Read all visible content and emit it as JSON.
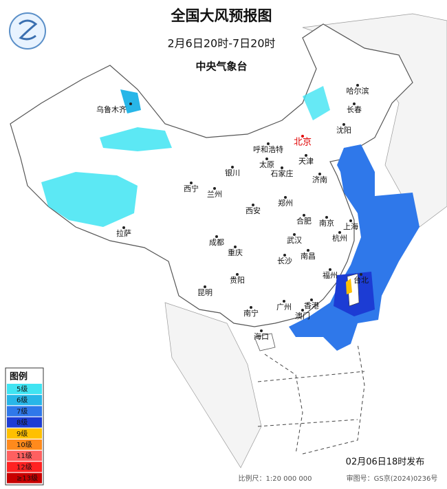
{
  "header": {
    "title": "全国大风预报图",
    "period": "2月6日20时-7日20时",
    "issuer": "中央气象台"
  },
  "cities": [
    {
      "name": "乌鲁木齐"
    },
    {
      "name": "哈尔滨"
    },
    {
      "name": "长春"
    },
    {
      "name": "沈阳"
    },
    {
      "name": "北京"
    },
    {
      "name": "呼和浩特"
    },
    {
      "name": "天津"
    },
    {
      "name": "银川"
    },
    {
      "name": "太原"
    },
    {
      "name": "石家庄"
    },
    {
      "name": "济南"
    },
    {
      "name": "西宁"
    },
    {
      "name": "兰州"
    },
    {
      "name": "郑州"
    },
    {
      "name": "西安"
    },
    {
      "name": "合肥"
    },
    {
      "name": "南京"
    },
    {
      "name": "上海"
    },
    {
      "name": "拉萨"
    },
    {
      "name": "成都"
    },
    {
      "name": "武汉"
    },
    {
      "name": "杭州"
    },
    {
      "name": "重庆"
    },
    {
      "name": "南昌"
    },
    {
      "name": "长沙"
    },
    {
      "name": "福州"
    },
    {
      "name": "台北"
    },
    {
      "name": "贵阳"
    },
    {
      "name": "昆明"
    },
    {
      "name": "广州"
    },
    {
      "name": "香港"
    },
    {
      "name": "澳门"
    },
    {
      "name": "南宁"
    },
    {
      "name": "海口"
    }
  ],
  "legend": {
    "title": "图例",
    "items": [
      {
        "label": "5级",
        "color": "#40e4f2"
      },
      {
        "label": "6级",
        "color": "#28b6e8"
      },
      {
        "label": "7级",
        "color": "#2f78ea"
      },
      {
        "label": "8级",
        "color": "#1c3cd4"
      },
      {
        "label": "9级",
        "color": "#ffc000"
      },
      {
        "label": "10级",
        "color": "#ff8a1c"
      },
      {
        "label": "11级",
        "color": "#ff6060"
      },
      {
        "label": "12级",
        "color": "#ff2222"
      },
      {
        "label": "≥13级",
        "color": "#c80000"
      }
    ]
  },
  "footer": {
    "release": "02月06日18时发布",
    "scale": "比例尺：1:20 000 000",
    "approval": "审图号：GS京(2024)0236号"
  }
}
